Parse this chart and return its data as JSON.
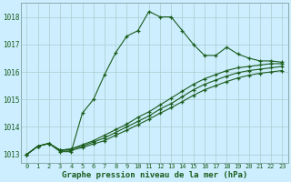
{
  "xlabel": "Graphe pression niveau de la mer (hPa)",
  "bg_color": "#cceeff",
  "grid_color": "#aacccc",
  "line_color": "#1a5c1a",
  "xlim": [
    -0.5,
    23.5
  ],
  "ylim": [
    1012.7,
    1018.5
  ],
  "yticks": [
    1013,
    1014,
    1015,
    1016,
    1017,
    1018
  ],
  "xticks": [
    0,
    1,
    2,
    3,
    4,
    5,
    6,
    7,
    8,
    9,
    10,
    11,
    12,
    13,
    14,
    15,
    16,
    17,
    18,
    19,
    20,
    21,
    22,
    23
  ],
  "series": [
    [
      1013.0,
      1013.3,
      1013.4,
      1013.1,
      1013.1,
      1014.5,
      1015.0,
      1015.9,
      1016.7,
      1017.3,
      1017.5,
      1018.2,
      1018.0,
      1018.0,
      1017.5,
      1017.0,
      1016.6,
      1016.6,
      1016.9,
      1016.65,
      1016.5,
      1016.4,
      1016.4,
      1016.35
    ],
    [
      1013.0,
      1013.3,
      1013.4,
      1013.15,
      1013.2,
      1013.35,
      1013.5,
      1013.7,
      1013.9,
      1014.1,
      1014.35,
      1014.55,
      1014.8,
      1015.05,
      1015.3,
      1015.55,
      1015.75,
      1015.9,
      1016.05,
      1016.15,
      1016.2,
      1016.25,
      1016.3,
      1016.3
    ],
    [
      1013.0,
      1013.3,
      1013.4,
      1013.15,
      1013.2,
      1013.3,
      1013.45,
      1013.6,
      1013.8,
      1014.0,
      1014.2,
      1014.4,
      1014.65,
      1014.85,
      1015.1,
      1015.35,
      1015.55,
      1015.7,
      1015.85,
      1015.97,
      1016.05,
      1016.1,
      1016.15,
      1016.2
    ],
    [
      1013.0,
      1013.3,
      1013.4,
      1013.15,
      1013.15,
      1013.25,
      1013.38,
      1013.5,
      1013.7,
      1013.88,
      1014.08,
      1014.28,
      1014.5,
      1014.7,
      1014.92,
      1015.15,
      1015.35,
      1015.5,
      1015.65,
      1015.78,
      1015.88,
      1015.95,
      1016.0,
      1016.05
    ]
  ]
}
